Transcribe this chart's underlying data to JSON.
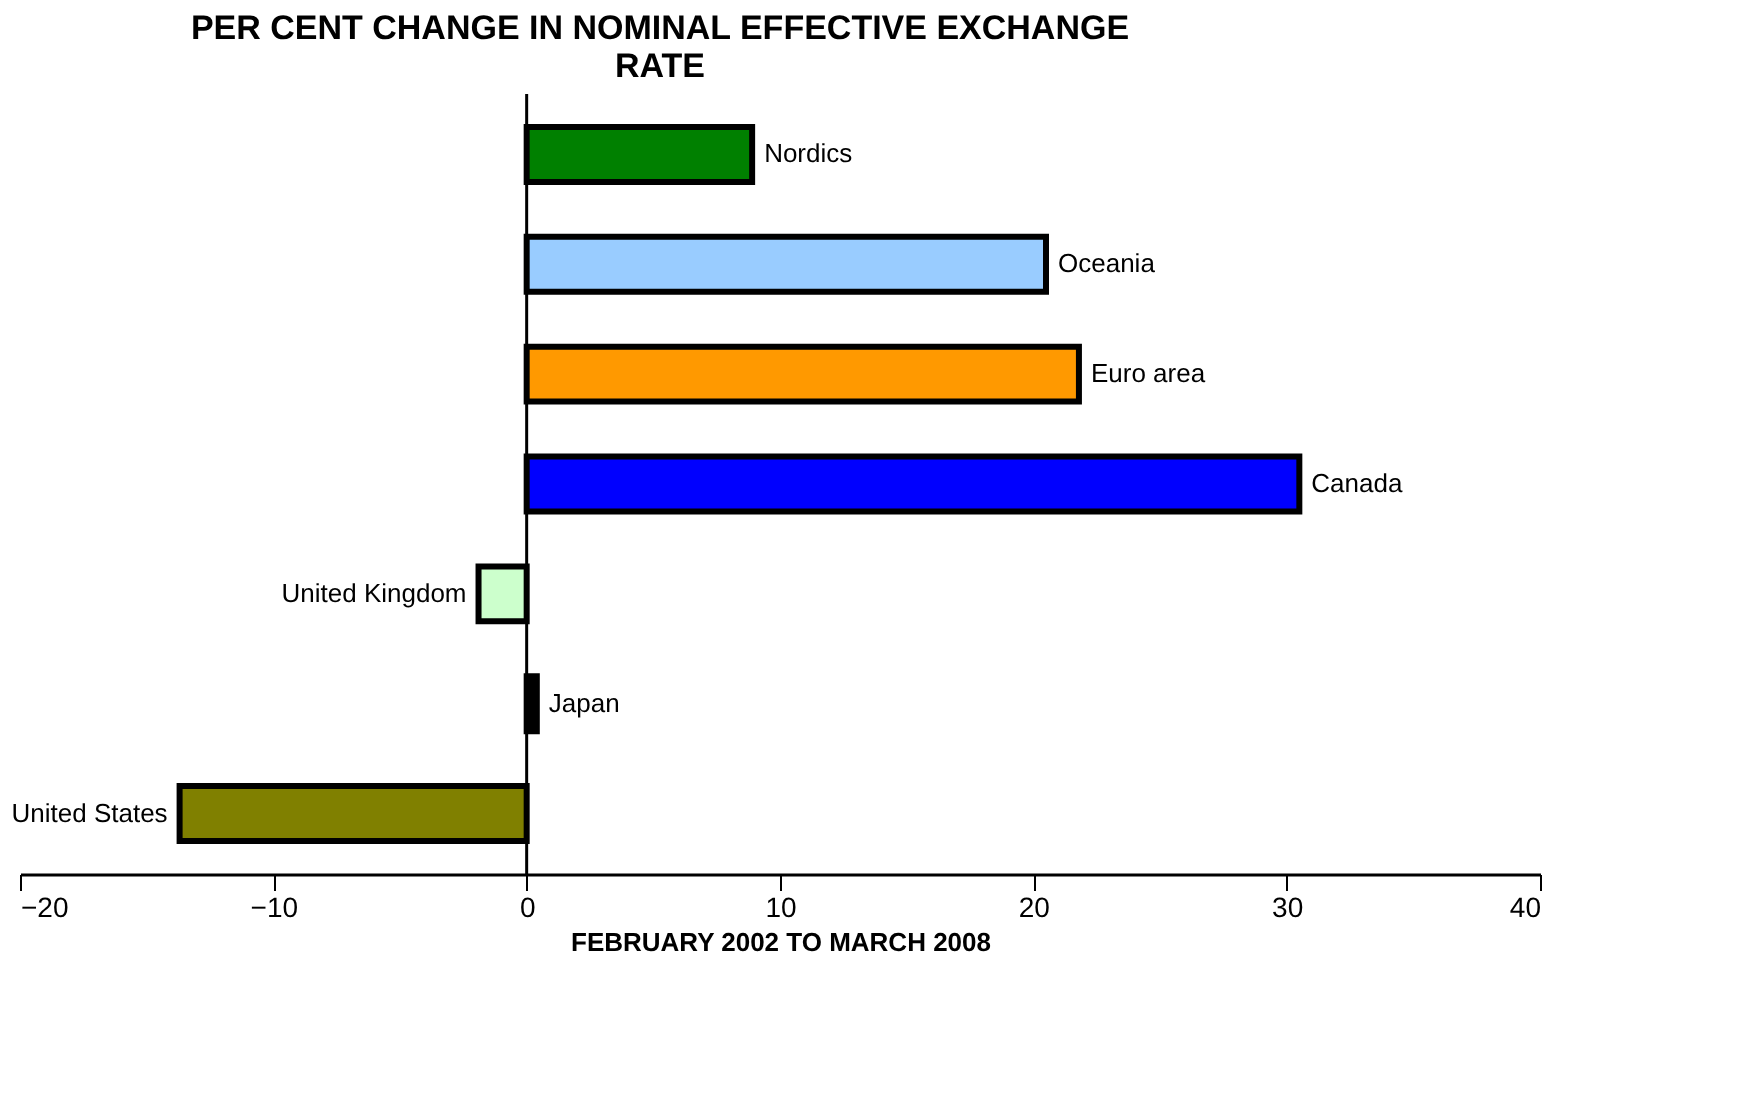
{
  "chart_data": {
    "type": "bar",
    "orientation": "horizontal",
    "title": "PER CENT CHANGE IN NOMINAL EFFECTIVE EXCHANGE RATE",
    "xlabel": "FEBRUARY 2002 TO MARCH 2008",
    "categories": [
      "Nordics",
      "Oceania",
      "Euro area",
      "Canada",
      "United Kingdom",
      "Japan",
      "United States"
    ],
    "values": [
      8.9,
      20.5,
      21.8,
      30.5,
      -1.9,
      0.4,
      -13.7
    ],
    "colors": [
      "#008000",
      "#99ccff",
      "#ff9900",
      "#0000ff",
      "#ccffcc",
      "#000000",
      "#808000"
    ],
    "xlim": [
      -20,
      40
    ],
    "xticks": [
      -20,
      -10,
      0,
      10,
      20,
      30,
      40
    ],
    "grid": false,
    "ref_lines": [
      {
        "axis": "x",
        "value": 0,
        "color": "#000000"
      }
    ]
  }
}
